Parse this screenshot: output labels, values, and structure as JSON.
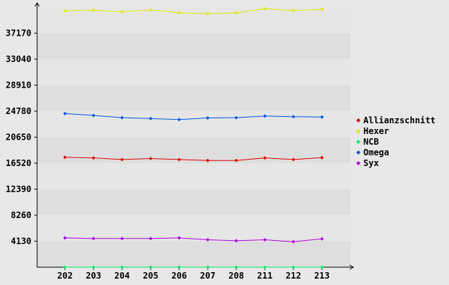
{
  "chart_data": {
    "type": "line",
    "title": "",
    "xlabel": "",
    "ylabel": "",
    "categories": [
      "202",
      "203",
      "204",
      "205",
      "206",
      "207",
      "208",
      "211",
      "212",
      "213"
    ],
    "y_ticks": [
      4130,
      8260,
      12390,
      16520,
      20650,
      24780,
      28910,
      33040,
      37170
    ],
    "ylim": [
      0,
      41300
    ],
    "grid": "alternating horizontal bands",
    "legend_position": "right",
    "series": [
      {
        "name": "Allianzschnitt",
        "color": "#dd0000",
        "values": [
          17450,
          17350,
          17100,
          17250,
          17100,
          16950,
          16950,
          17350,
          17100,
          17400
        ]
      },
      {
        "name": "Hexer",
        "color": "#ddee00",
        "values": [
          40700,
          40800,
          40550,
          40850,
          40400,
          40250,
          40400,
          41050,
          40750,
          40950
        ]
      },
      {
        "name": "NCB",
        "color": "#00ee66",
        "values": [
          0,
          0,
          0,
          0,
          0,
          0,
          0,
          0,
          0,
          0
        ]
      },
      {
        "name": "Omega",
        "color": "#0055dd",
        "values": [
          24400,
          24100,
          23750,
          23600,
          23450,
          23700,
          23750,
          24000,
          23900,
          23850
        ]
      },
      {
        "name": "Syx",
        "color": "#aa00dd",
        "values": [
          4650,
          4550,
          4550,
          4550,
          4650,
          4350,
          4200,
          4350,
          4050,
          4500
        ]
      }
    ]
  }
}
